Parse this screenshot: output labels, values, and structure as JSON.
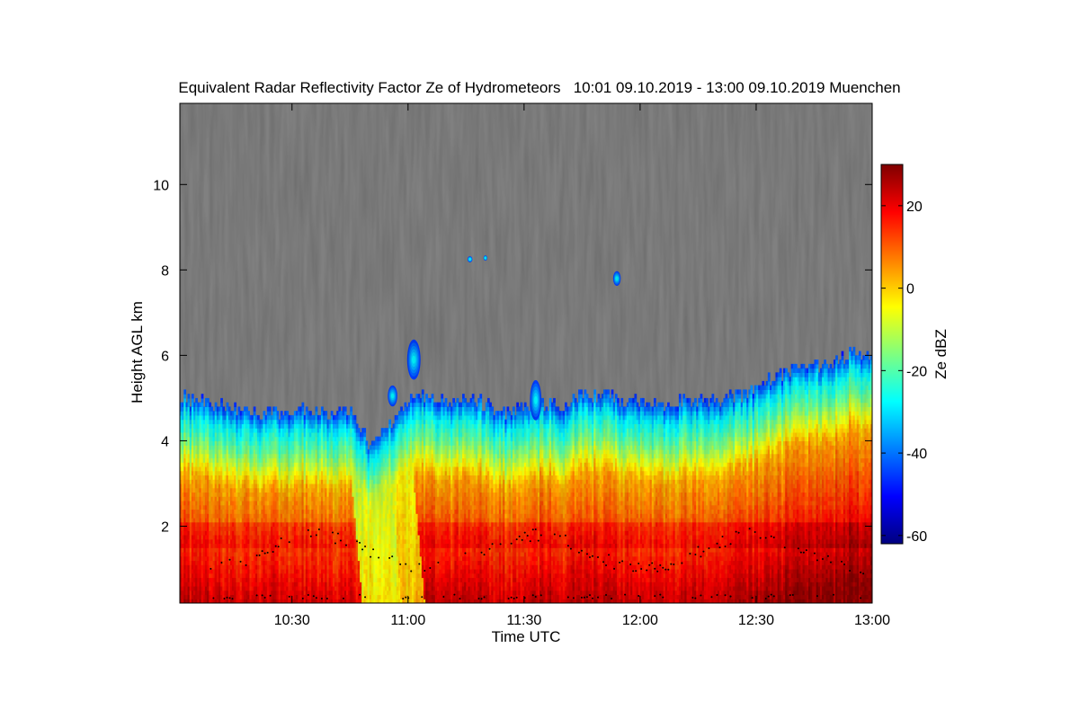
{
  "chart_data": {
    "type": "heatmap",
    "title": "Equivalent Radar Reflectivity Factor Ze of Hydrometeors   10:01 09.10.2019 - 13:00 09.10.2019 Muenchen",
    "xlabel": "Time UTC",
    "ylabel": "Height AGL km",
    "colorbar_label": "Ze dBZ",
    "x_range": [
      "10:01",
      "13:00"
    ],
    "xlim_minutes": [
      601,
      780
    ],
    "ylim": [
      0.2,
      11.9
    ],
    "clim": [
      -62,
      30
    ],
    "x_ticks": [
      {
        "label": "10:30",
        "minutes": 630
      },
      {
        "label": "11:00",
        "minutes": 660
      },
      {
        "label": "11:30",
        "minutes": 690
      },
      {
        "label": "12:00",
        "minutes": 720
      },
      {
        "label": "12:30",
        "minutes": 750
      },
      {
        "label": "13:00",
        "minutes": 780
      }
    ],
    "y_ticks": [
      2,
      4,
      6,
      8,
      10
    ],
    "colorbar_ticks": [
      20,
      0,
      -20,
      -40,
      -60
    ],
    "colormap": [
      "#00007f",
      "#0000ff",
      "#007fff",
      "#00ffff",
      "#7fff7f",
      "#ffff00",
      "#ff7f00",
      "#ff0000",
      "#7f0000"
    ],
    "no_signal_color": "#808080",
    "echo_top_km": [
      [
        601,
        5.0
      ],
      [
        605,
        4.9
      ],
      [
        610,
        4.8
      ],
      [
        615,
        4.7
      ],
      [
        620,
        4.6
      ],
      [
        625,
        4.65
      ],
      [
        630,
        4.7
      ],
      [
        635,
        4.65
      ],
      [
        640,
        4.6
      ],
      [
        645,
        4.7
      ],
      [
        650,
        3.8
      ],
      [
        655,
        4.4
      ],
      [
        660,
        4.9
      ],
      [
        665,
        5.0
      ],
      [
        670,
        4.9
      ],
      [
        675,
        4.9
      ],
      [
        680,
        4.8
      ],
      [
        685,
        4.6
      ],
      [
        690,
        4.8
      ],
      [
        695,
        4.8
      ],
      [
        700,
        4.8
      ],
      [
        705,
        5.0
      ],
      [
        710,
        5.0
      ],
      [
        715,
        4.9
      ],
      [
        720,
        4.9
      ],
      [
        725,
        4.8
      ],
      [
        730,
        4.9
      ],
      [
        735,
        4.9
      ],
      [
        740,
        4.9
      ],
      [
        745,
        5.0
      ],
      [
        750,
        5.2
      ],
      [
        755,
        5.5
      ],
      [
        760,
        5.6
      ],
      [
        765,
        5.7
      ],
      [
        770,
        5.8
      ],
      [
        775,
        6.1
      ],
      [
        780,
        5.9
      ]
    ],
    "cloud_patches": [
      {
        "t": 661.5,
        "h": 5.9,
        "w_min": 3.0,
        "h_km": 0.9
      },
      {
        "t": 656.0,
        "h": 5.05,
        "w_min": 2.0,
        "h_km": 0.45
      },
      {
        "t": 693.0,
        "h": 4.95,
        "w_min": 2.5,
        "h_km": 0.9
      },
      {
        "t": 714.0,
        "h": 7.8,
        "w_min": 1.5,
        "h_km": 0.3
      },
      {
        "t": 676.0,
        "h": 8.25,
        "w_min": 0.8,
        "h_km": 0.1
      },
      {
        "t": 680.0,
        "h": 8.28,
        "w_min": 0.5,
        "h_km": 0.08
      }
    ],
    "precip_shafts": [
      {
        "t_start": 644,
        "t_end": 654,
        "dbz": -5
      },
      {
        "t_start": 654,
        "t_end": 660,
        "dbz": 0
      }
    ],
    "melting_layer_km": 1.8
  }
}
